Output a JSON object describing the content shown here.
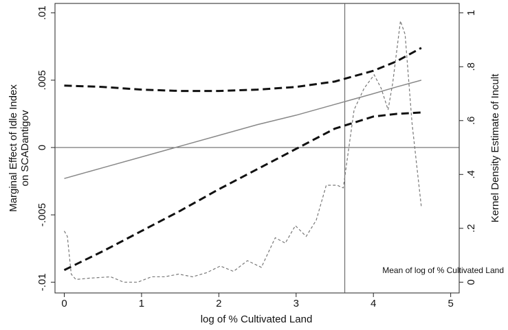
{
  "chart_data": {
    "type": "line",
    "x_label": "log of % Cultivated Land",
    "y_label": [
      "Marginal Effect of Idle Index",
      "on SCADantigov"
    ],
    "y2_label": "Kernel Density Estimate of Incult",
    "annotation": "Mean of log of % Cultivated Land",
    "xlim": [
      -0.12,
      5.11
    ],
    "xticks": [
      0,
      1,
      2,
      3,
      4,
      5
    ],
    "ylim": [
      -0.0108,
      0.0107
    ],
    "yticks": [
      {
        "value": -0.01,
        "label": "-.01"
      },
      {
        "value": -0.005,
        "label": "-.005"
      },
      0,
      {
        "value": 0.005,
        "label": ".005"
      },
      {
        "value": 0.01,
        "label": ".01"
      }
    ],
    "y2lim": [
      -0.04,
      1.035
    ],
    "y2ticks": [
      0,
      {
        "value": 0.2,
        "label": ".2"
      },
      {
        "value": 0.4,
        "label": ".4"
      },
      {
        "value": 0.6,
        "label": ".6"
      },
      {
        "value": 0.8,
        "label": ".8"
      },
      1
    ],
    "reference_lines": {
      "x": 3.63,
      "y": 0
    },
    "series": [
      {
        "color": "#111111",
        "style": "dashed-thick",
        "x": [
          0,
          0.5,
          1,
          1.5,
          2,
          2.5,
          3,
          3.5,
          4,
          4.3,
          4.62
        ],
        "values": [
          0.0046,
          0.0045,
          0.0043,
          0.0042,
          0.0042,
          0.0043,
          0.0045,
          0.0049,
          0.0057,
          0.0064,
          0.0074
        ]
      },
      {
        "color": "#111111",
        "style": "dashed-thick",
        "x": [
          0,
          0.5,
          1,
          1.5,
          2,
          2.5,
          3,
          3.5,
          4,
          4.3,
          4.62
        ],
        "values": [
          -0.0091,
          -0.0077,
          -0.0062,
          -0.0047,
          -0.0031,
          -0.0016,
          -0.0001,
          0.0014,
          0.0023,
          0.0025,
          0.0026
        ]
      },
      {
        "color": "#888888",
        "style": "solid",
        "x": [
          0,
          0.5,
          1,
          1.5,
          2,
          2.5,
          3,
          3.5,
          4,
          4.3,
          4.62
        ],
        "values": [
          -0.0023,
          -0.0015,
          -0.0007,
          0.0001,
          0.0009,
          0.0017,
          0.0024,
          0.0032,
          0.004,
          0.0045,
          0.005
        ]
      },
      {
        "color": "#777777",
        "style": "dashed-thin",
        "axis": "y2",
        "x": [
          0,
          0.04,
          0.09,
          0.15,
          0.33,
          0.6,
          0.77,
          0.95,
          1.13,
          1.3,
          1.48,
          1.66,
          1.84,
          2.02,
          2.19,
          2.37,
          2.55,
          2.73,
          2.86,
          2.99,
          3.13,
          3.26,
          3.39,
          3.53,
          3.61,
          3.75,
          3.88,
          4.01,
          4.1,
          4.19,
          4.25,
          4.35,
          4.41,
          4.5,
          4.62
        ],
        "values": [
          0.19,
          0.17,
          0.03,
          0.01,
          0.015,
          0.02,
          0,
          0,
          0.02,
          0.02,
          0.03,
          0.02,
          0.035,
          0.06,
          0.04,
          0.08,
          0.055,
          0.165,
          0.145,
          0.21,
          0.17,
          0.23,
          0.36,
          0.36,
          0.35,
          0.64,
          0.72,
          0.77,
          0.72,
          0.64,
          0.74,
          0.97,
          0.92,
          0.59,
          0.28
        ]
      }
    ]
  }
}
